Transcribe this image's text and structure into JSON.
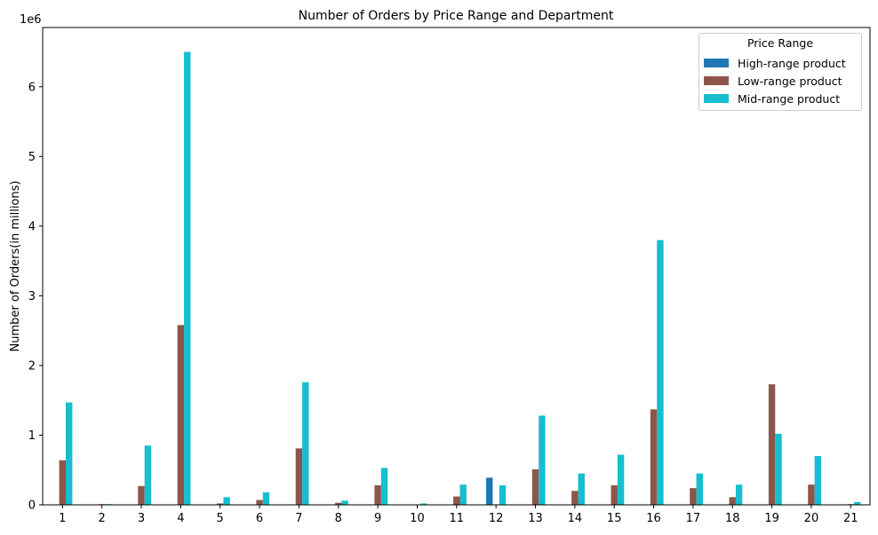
{
  "chart_data": {
    "type": "bar",
    "title": "Number of Orders by Price Range and Department",
    "xlabel": "",
    "ylabel": "Number of Orders(in millions)",
    "offset_text": "1e6",
    "ylim": [
      0,
      6.85
    ],
    "yticks": [
      0,
      1,
      2,
      3,
      4,
      5,
      6
    ],
    "grid": false,
    "legend": {
      "title": "Price Range",
      "placement": "top-right"
    },
    "categories": [
      "1",
      "2",
      "3",
      "4",
      "5",
      "6",
      "7",
      "8",
      "9",
      "10",
      "11",
      "12",
      "13",
      "14",
      "15",
      "16",
      "17",
      "18",
      "19",
      "20",
      "21"
    ],
    "series": [
      {
        "name": "High-range product",
        "color": "#1f77b4",
        "values": [
          0,
          0,
          0,
          0,
          0,
          0,
          0,
          0,
          0,
          0,
          0,
          0.39,
          0,
          0,
          0,
          0,
          0,
          0,
          0,
          0,
          0
        ]
      },
      {
        "name": "Low-range product",
        "color": "#8c564b",
        "values": [
          0.64,
          0.01,
          0.27,
          2.58,
          0.02,
          0.07,
          0.81,
          0.03,
          0.28,
          0.004,
          0.12,
          0,
          0.51,
          0.2,
          0.28,
          1.37,
          0.24,
          0.11,
          1.73,
          0.29,
          0.01
        ]
      },
      {
        "name": "Mid-range product",
        "color": "#17becf",
        "values": [
          1.47,
          0.01,
          0.85,
          6.5,
          0.11,
          0.18,
          1.76,
          0.06,
          0.53,
          0.02,
          0.29,
          0.28,
          1.28,
          0.45,
          0.72,
          3.8,
          0.45,
          0.29,
          1.02,
          0.7,
          0.04
        ]
      }
    ]
  }
}
